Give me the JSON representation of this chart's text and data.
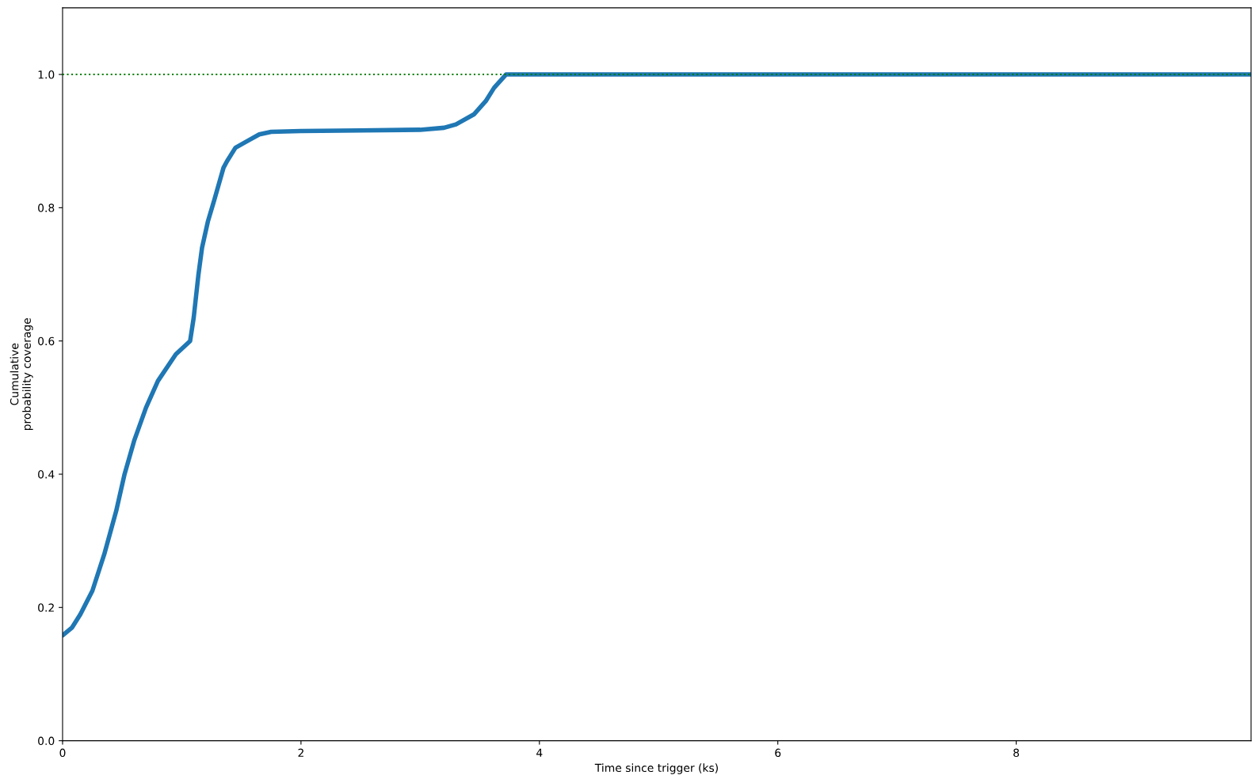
{
  "chart_data": {
    "type": "line",
    "xlabel": "Time since trigger (ks)",
    "ylabel": "Cumulative\nprobability coverage",
    "xlim": [
      0,
      9.97
    ],
    "ylim": [
      0,
      1.1
    ],
    "xticks": [
      0,
      2,
      4,
      6,
      8
    ],
    "yticks": [
      {
        "value": 0,
        "label": "0.0"
      },
      0.2,
      0.4,
      0.6,
      0.8,
      {
        "value": 1,
        "label": "1.0"
      }
    ],
    "x": [
      0,
      0.08,
      0.15,
      0.25,
      0.35,
      0.45,
      0.52,
      0.6,
      0.7,
      0.8,
      0.95,
      1.07,
      1.1,
      1.14,
      1.17,
      1.22,
      1.27,
      1.35,
      1.38,
      1.45,
      1.55,
      1.65,
      1.75,
      2.0,
      2.5,
      3.0,
      3.2,
      3.3,
      3.45,
      3.55,
      3.62,
      3.72,
      9.97
    ],
    "series": [
      {
        "color": "#1f77b4",
        "values": [
          0.158,
          0.17,
          0.19,
          0.225,
          0.28,
          0.345,
          0.4,
          0.45,
          0.5,
          0.54,
          0.58,
          0.6,
          0.635,
          0.7,
          0.74,
          0.78,
          0.81,
          0.86,
          0.87,
          0.89,
          0.9,
          0.91,
          0.914,
          0.915,
          0.916,
          0.917,
          0.92,
          0.925,
          0.94,
          0.96,
          0.98,
          1.0,
          1.0
        ]
      }
    ],
    "ref_lines": [
      {
        "axis": "y",
        "value": 1.0,
        "color": "#008000",
        "line_style": "dotted"
      }
    ],
    "grid": false,
    "legend": false
  }
}
